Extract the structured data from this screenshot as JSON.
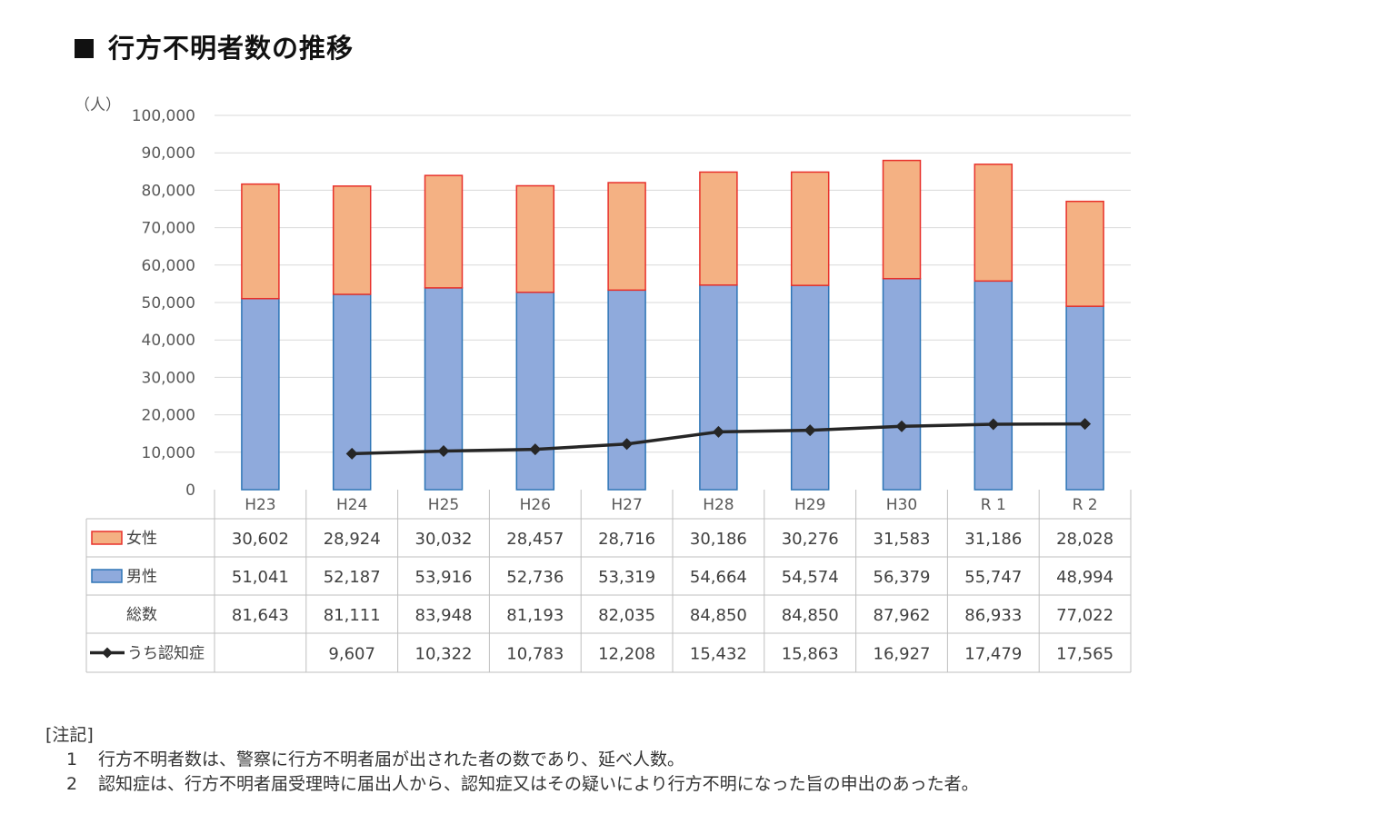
{
  "title": "行方不明者数の推移",
  "chart_data": {
    "type": "bar",
    "stacked": true,
    "unit_label": "（人）",
    "categories": [
      "H23",
      "H24",
      "H25",
      "H26",
      "H27",
      "H28",
      "H29",
      "H30",
      "R 1",
      "R 2"
    ],
    "y_ticks": [
      "0",
      "10,000",
      "20,000",
      "30,000",
      "40,000",
      "50,000",
      "60,000",
      "70,000",
      "80,000",
      "90,000",
      "100,000"
    ],
    "ylim": [
      0,
      100000
    ],
    "grid": true,
    "series": [
      {
        "name": "女性",
        "kind": "bar",
        "color": "#F4B183",
        "edge": "#E8312B",
        "values": [
          30602,
          28924,
          30032,
          28457,
          28716,
          30186,
          30276,
          31583,
          31186,
          28028
        ],
        "labels": [
          "30,602",
          "28,924",
          "30,032",
          "28,457",
          "28,716",
          "30,186",
          "30,276",
          "31,583",
          "31,186",
          "28,028"
        ]
      },
      {
        "name": "男性",
        "kind": "bar",
        "color": "#8FAADC",
        "edge": "#2E75B6",
        "values": [
          51041,
          52187,
          53916,
          52736,
          53319,
          54664,
          54574,
          56379,
          55747,
          48994
        ],
        "labels": [
          "51,041",
          "52,187",
          "53,916",
          "52,736",
          "53,319",
          "54,664",
          "54,574",
          "56,379",
          "55,747",
          "48,994"
        ]
      },
      {
        "name": "総数",
        "kind": "total",
        "values": [
          81643,
          81111,
          83948,
          81193,
          82035,
          84850,
          84850,
          87962,
          86933,
          77022
        ],
        "labels": [
          "81,643",
          "81,111",
          "83,948",
          "81,193",
          "82,035",
          "84,850",
          "84,850",
          "87,962",
          "86,933",
          "77,022"
        ]
      },
      {
        "name": "うち認知症",
        "kind": "line",
        "color": "#262626",
        "values": [
          null,
          9607,
          10322,
          10783,
          12208,
          15432,
          15863,
          16927,
          17479,
          17565
        ],
        "labels": [
          "",
          "9,607",
          "10,322",
          "10,783",
          "12,208",
          "15,432",
          "15,863",
          "16,927",
          "17,479",
          "17,565"
        ]
      }
    ]
  },
  "notes": {
    "heading": "[注記]",
    "items": [
      {
        "num": "1",
        "text": "行方不明者数は、警察に行方不明者届が出された者の数であり、延べ人数。"
      },
      {
        "num": "2",
        "text": "認知症は、行方不明者届受理時に届出人から、認知症又はその疑いにより行方不明になった旨の申出のあった者。"
      }
    ]
  }
}
